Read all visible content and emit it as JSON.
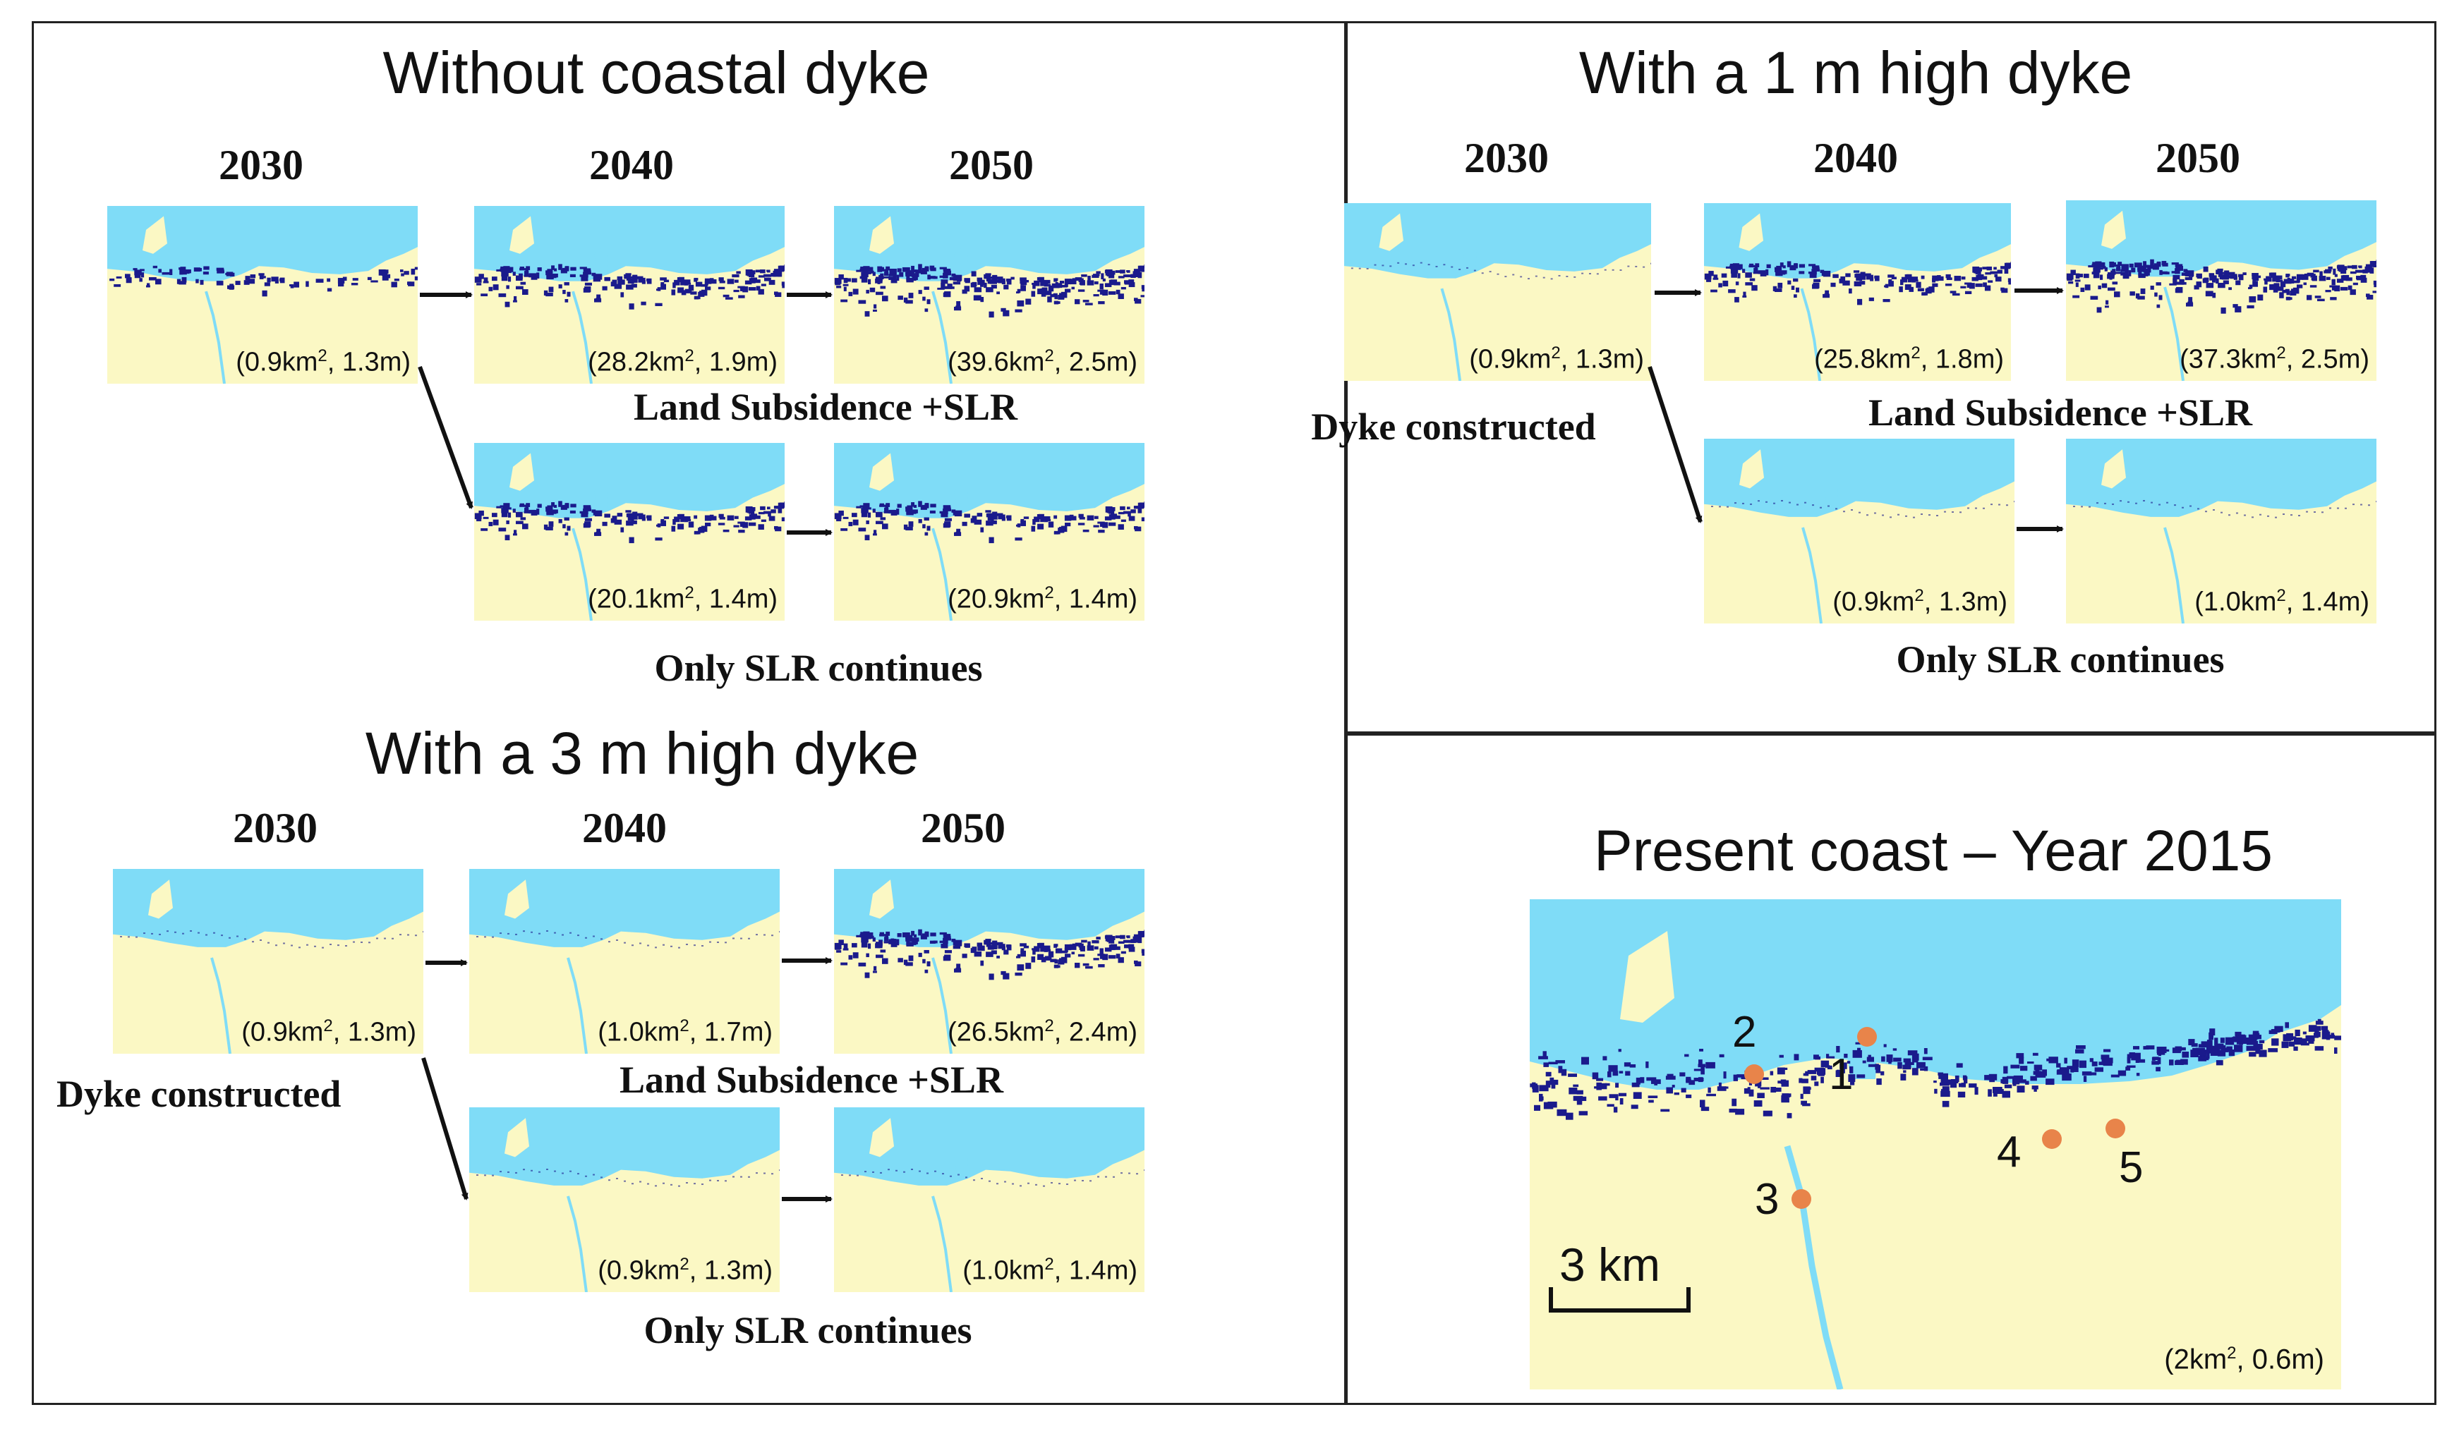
{
  "colors": {
    "sea": "#7fdcf7",
    "land": "#fbf8c4",
    "flood": "#1a1a8c",
    "marker": "#e8844a"
  },
  "panels": {
    "no_dyke": {
      "title": "Without coastal dyke",
      "years": [
        "2030",
        "2040",
        "2050"
      ],
      "subsidence_label": "Land Subsidence +SLR",
      "slr_label": "Only SLR continues",
      "maps": [
        {
          "area": "0.9",
          "depth": "1.3",
          "flood_level": 0.35
        },
        {
          "area": "28.2",
          "depth": "1.9",
          "flood_level": 0.75
        },
        {
          "area": "39.6",
          "depth": "2.5",
          "flood_level": 1.0
        },
        {
          "area": "20.1",
          "depth": "1.4",
          "flood_level": 0.65
        },
        {
          "area": "20.9",
          "depth": "1.4",
          "flood_level": 0.65
        }
      ]
    },
    "dyke_1m": {
      "title": "With a 1 m high dyke",
      "years": [
        "2030",
        "2040",
        "2050"
      ],
      "dyke_label": "Dyke constructed",
      "subsidence_label": "Land Subsidence +SLR",
      "slr_label": "Only SLR continues",
      "maps": [
        {
          "area": "0.9",
          "depth": "1.3",
          "flood_level": 0
        },
        {
          "area": "25.8",
          "depth": "1.8",
          "flood_level": 0.7
        },
        {
          "area": "37.3",
          "depth": "2.5",
          "flood_level": 1.0
        },
        {
          "area": "0.9",
          "depth": "1.3",
          "flood_level": 0
        },
        {
          "area": "1.0",
          "depth": "1.4",
          "flood_level": 0
        }
      ]
    },
    "dyke_3m": {
      "title": "With a 3 m high dyke",
      "years": [
        "2030",
        "2040",
        "2050"
      ],
      "dyke_label": "Dyke constructed",
      "subsidence_label": "Land Subsidence +SLR",
      "slr_label": "Only SLR continues",
      "maps": [
        {
          "area": "0.9",
          "depth": "1.3",
          "flood_level": 0
        },
        {
          "area": "1.0",
          "depth": "1.7",
          "flood_level": 0
        },
        {
          "area": "26.5",
          "depth": "2.4",
          "flood_level": 0.85
        },
        {
          "area": "0.9",
          "depth": "1.3",
          "flood_level": 0
        },
        {
          "area": "1.0",
          "depth": "1.4",
          "flood_level": 0
        }
      ]
    },
    "present": {
      "title": "Present coast – Year 2015",
      "area": "2",
      "depth": "0.6",
      "scale_label": "3 km",
      "markers": [
        "1",
        "2",
        "3",
        "4",
        "5"
      ]
    }
  },
  "units": {
    "area_unit": "km",
    "area_exp": "2",
    "depth_unit": "m"
  }
}
